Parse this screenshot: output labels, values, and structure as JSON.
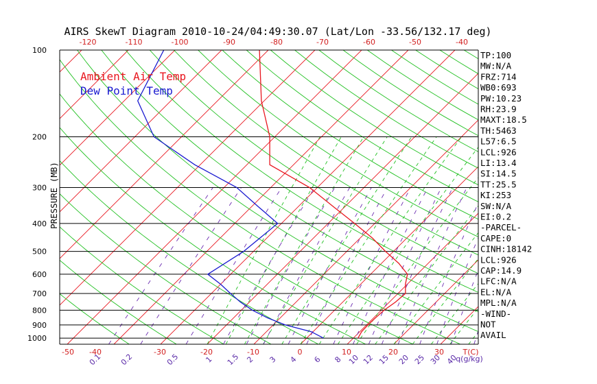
{
  "chart_data": {
    "type": "line",
    "title": "AIRS SkewT Diagram 2010-10-24/04:49:30.07 (Lat/Lon -33.56/132.17 deg)",
    "ylabel": "PRESSURE (MB)",
    "y_scale": "log",
    "ylim": [
      1050,
      100
    ],
    "xlim": [
      -50,
      40
    ],
    "pressure_ticks": [
      100,
      200,
      300,
      400,
      500,
      600,
      700,
      800,
      900,
      1000
    ],
    "pressure_tick_labels": [
      "100",
      "200",
      "300",
      "400",
      "500",
      "600",
      "700",
      "800",
      "900",
      "1000"
    ],
    "bottom_temp_ticks": [
      -50,
      -40,
      -30,
      -20,
      -10,
      0,
      10,
      20,
      30
    ],
    "bottom_temp_tick_labels": [
      "-50",
      "-40",
      "-30",
      "-20",
      "-10",
      "0",
      "10",
      "20",
      "30"
    ],
    "bottom_unit_label": "T(C)",
    "top_temp_ticks": [
      -120,
      -110,
      -100,
      -90,
      -80,
      -70,
      -60,
      -50,
      -40
    ],
    "top_temp_tick_labels": [
      "-120",
      "-110",
      "-100",
      "-90",
      "-80",
      "-70",
      "-60",
      "-50",
      "-40"
    ],
    "mixing_ratio_labels": [
      "0.1",
      "0.2",
      "0.5",
      "1",
      "1.5",
      "2",
      "3",
      "4",
      "6",
      "8",
      "10",
      "12",
      "15",
      "20",
      "25",
      "30",
      "40"
    ],
    "mixing_ratio_unit": "q(g/kg)",
    "legend": [
      {
        "name": "Ambient Air Temp",
        "color": "#e8161e"
      },
      {
        "name": "Dew Point Temp",
        "color": "#1a1ad0"
      }
    ],
    "series": [
      {
        "name": "Ambient Air Temp",
        "color": "#e8161e",
        "points": [
          {
            "p": 1000,
            "t": 11.0
          },
          {
            "p": 950,
            "t": 10.4
          },
          {
            "p": 900,
            "t": 10.3
          },
          {
            "p": 850,
            "t": 10.4
          },
          {
            "p": 800,
            "t": 10.6
          },
          {
            "p": 750,
            "t": 11.3
          },
          {
            "p": 700,
            "t": 11.6
          },
          {
            "p": 650,
            "t": 9.6
          },
          {
            "p": 600,
            "t": 7.9
          },
          {
            "p": 550,
            "t": 3.7
          },
          {
            "p": 500,
            "t": -1.7
          },
          {
            "p": 450,
            "t": -7.3
          },
          {
            "p": 400,
            "t": -14.3
          },
          {
            "p": 350,
            "t": -22.4
          },
          {
            "p": 300,
            "t": -31.7
          },
          {
            "p": 250,
            "t": -45.1
          },
          {
            "p": 200,
            "t": -51.1
          },
          {
            "p": 150,
            "t": -60.6
          },
          {
            "p": 100,
            "t": -71.9
          }
        ]
      },
      {
        "name": "Dew Point Temp",
        "color": "#1a1ad0",
        "points": [
          {
            "p": 1000,
            "t": 3.6
          },
          {
            "p": 950,
            "t": -0.4
          },
          {
            "p": 900,
            "t": -7.4
          },
          {
            "p": 850,
            "t": -12.8
          },
          {
            "p": 800,
            "t": -17.6
          },
          {
            "p": 750,
            "t": -21.9
          },
          {
            "p": 700,
            "t": -25.9
          },
          {
            "p": 650,
            "t": -30.0
          },
          {
            "p": 600,
            "t": -34.9
          },
          {
            "p": 500,
            "t": -32.1
          },
          {
            "p": 400,
            "t": -30.8
          },
          {
            "p": 350,
            "t": -38.5
          },
          {
            "p": 300,
            "t": -47.3
          },
          {
            "p": 250,
            "t": -61.2
          },
          {
            "p": 200,
            "t": -75.9
          },
          {
            "p": 150,
            "t": -87.1
          },
          {
            "p": 100,
            "t": -92.4
          }
        ]
      }
    ],
    "grid": true
  },
  "indices": [
    "TP:100",
    "MW:N/A",
    "FRZ:714",
    "WB0:693",
    "PW:10.23",
    "RH:23.9",
    "MAXT:18.5",
    "TH:5463",
    "L57:6.5",
    "LCL:926",
    "LI:13.4",
    "SI:14.5",
    "TT:25.5",
    "KI:253",
    "SW:N/A",
    "EI:0.2",
    "-PARCEL-",
    "CAPE:0",
    "CINH:18142",
    "LCL:926",
    "CAP:14.9",
    "LFC:N/A",
    "EL:N/A",
    "MPL:N/A",
    "-WIND-",
    " NOT",
    " AVAIL"
  ],
  "colors": {
    "isotherm": "#e8161e",
    "dry_adiabat": "#20c020",
    "moist_adiabat": "#20c020",
    "mixing_ratio": "#6a2ab0",
    "isobar": "#000000",
    "temp_tick_label": "#d21e1e",
    "mixing_label": "#5a2aa8"
  }
}
